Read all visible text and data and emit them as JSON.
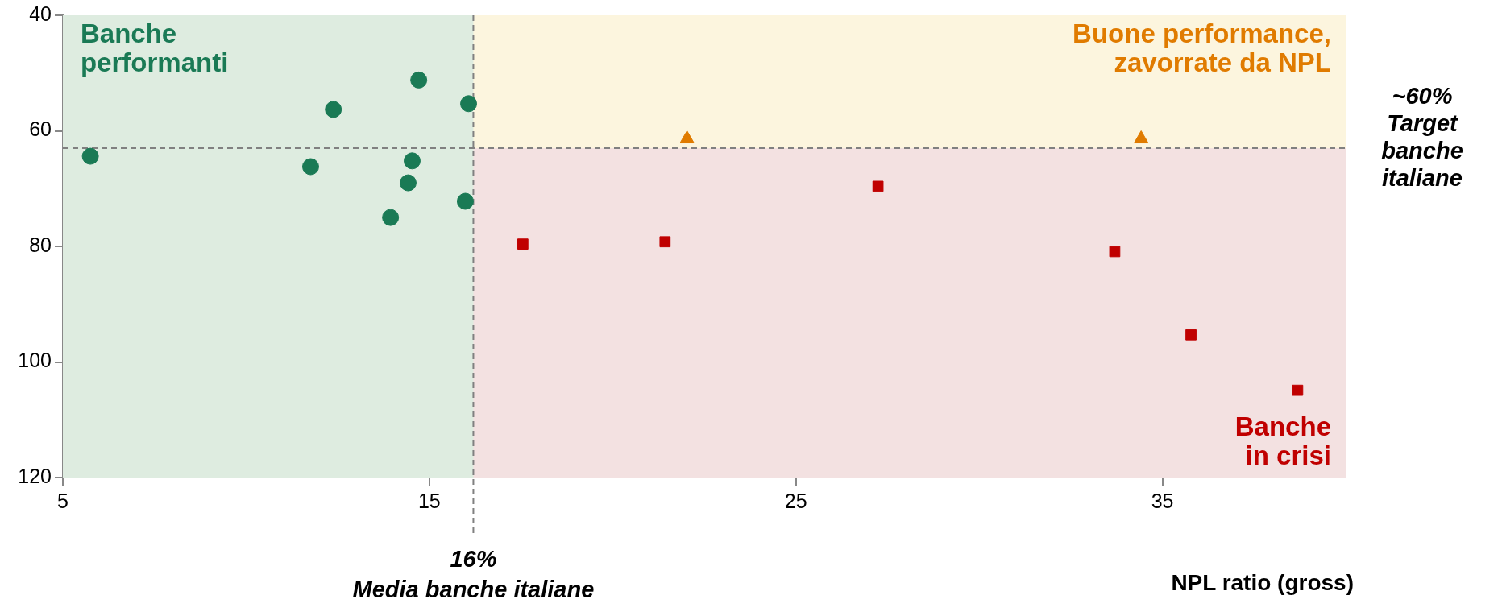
{
  "chart_data": {
    "type": "scatter",
    "xlabel": "NPL ratio (gross)",
    "xlim": [
      5,
      40
    ],
    "xticks": [
      5,
      15,
      25,
      35
    ],
    "ylim": [
      120,
      40
    ],
    "yticks": [
      40,
      60,
      80,
      100,
      120
    ],
    "grid": false,
    "legend": false,
    "series": [
      {
        "color": "#1a7a55",
        "marker": "circle",
        "x": [
          5.75,
          11.76,
          12.38,
          14.71,
          16.07,
          14.53,
          14.42,
          13.94,
          15.98
        ],
        "values": [
          64.4,
          66.2,
          56.3,
          51.2,
          55.3,
          65.2,
          69.0,
          75.0,
          72.2
        ]
      },
      {
        "color": "#e07b00",
        "marker": "triangle",
        "x": [
          22.03,
          34.42
        ],
        "values": [
          61.4,
          61.4
        ]
      },
      {
        "color": "#c00000",
        "marker": "square",
        "x": [
          17.55,
          21.43,
          27.24,
          33.7,
          35.78,
          38.69
        ],
        "values": [
          79.6,
          79.2,
          69.6,
          80.9,
          95.3,
          104.9
        ]
      }
    ],
    "bands": [
      {
        "axis": "y",
        "from": 40,
        "to": 63,
        "label": "Buone performance,\nzavorrate da NPL",
        "color": "#fcf5de"
      },
      {
        "axis": "y",
        "from": 63,
        "to": 120,
        "label": "Banche\nin crisi",
        "color": "#f3e1e1"
      },
      {
        "axis": "x",
        "from": 5,
        "to": 16.2,
        "label": "Banche\nperformanti",
        "color": "#deece0"
      }
    ],
    "ref_lines": [
      {
        "axis": "x",
        "value": 16.2,
        "label": "16%\nMedia banche italiane",
        "color": "#808080",
        "line_style": "dashed"
      },
      {
        "axis": "y",
        "value": 63,
        "label": "~60%\nTarget\nbanche\nitaliane",
        "color": "#808080",
        "line_style": "dashed"
      }
    ]
  }
}
